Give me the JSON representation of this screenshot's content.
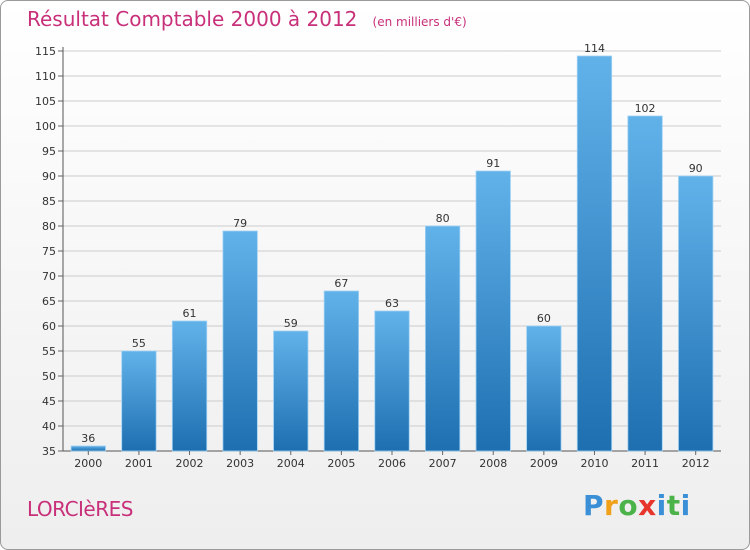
{
  "place": "LORCIèRES",
  "brand": {
    "text": "Proxiti",
    "letter_colors": [
      "#3a8fd6",
      "#f0a019",
      "#4bb34a",
      "#e8352c",
      "#3a8fd6",
      "#4bb34a"
    ]
  },
  "colors": {
    "title": "#c8307a",
    "bar_light": "#62b2ea",
    "bar_dark": "#1d6fb0",
    "grid": "#cccccc",
    "text": "#333333"
  },
  "chart_data": {
    "type": "bar",
    "title": "Résultat Comptable 2000 à 2012",
    "subtitle": "(en milliers d'€)",
    "categories": [
      "2000",
      "2001",
      "2002",
      "2003",
      "2004",
      "2005",
      "2006",
      "2007",
      "2008",
      "2009",
      "2010",
      "2011",
      "2012"
    ],
    "values": [
      36,
      55,
      61,
      79,
      59,
      67,
      63,
      80,
      91,
      60,
      114,
      102,
      90
    ],
    "ylim": [
      35,
      115
    ],
    "yticks": [
      35,
      40,
      45,
      50,
      55,
      60,
      65,
      70,
      75,
      80,
      85,
      90,
      95,
      100,
      105,
      110,
      115
    ],
    "grid": true,
    "xlabel": "",
    "ylabel": ""
  }
}
